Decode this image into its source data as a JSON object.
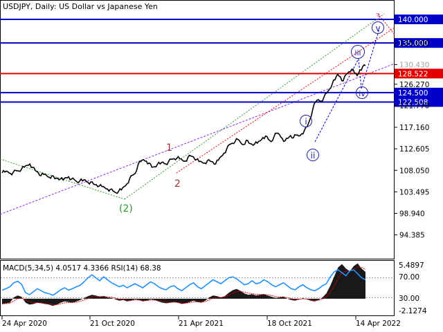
{
  "title": "USDJPY, Daily:  US Dollar vs Japanese Yen",
  "price_axis": {
    "ticks": [
      "135.000",
      "130.430",
      "126.270",
      "121.770",
      "117.160",
      "112.605",
      "108.050",
      "103.495",
      "98.940",
      "94.385"
    ],
    "tick_values": [
      135.0,
      130.43,
      126.27,
      121.77,
      117.16,
      112.605,
      108.05,
      103.495,
      98.94,
      94.385
    ],
    "range": [
      89.5,
      143.8
    ]
  },
  "level_lines": [
    {
      "value": 140.0,
      "label": "140.000",
      "color": "#0000c8"
    },
    {
      "value": 135.0,
      "label": "135.000",
      "color": "#0000c8"
    },
    {
      "value": 128.522,
      "label": "128.522",
      "color": "#e00000"
    },
    {
      "value": 124.5,
      "label": "124.500",
      "color": "#0000c8"
    },
    {
      "value": 122.508,
      "label": "122.508",
      "color": "#0000c8"
    }
  ],
  "price_label_current": "130.430",
  "wave_labels": [
    {
      "text": "1",
      "color": "#a03030"
    },
    {
      "text": "2",
      "color": "#a03030"
    },
    {
      "text": "(2)",
      "color": "#2e9a2e"
    },
    {
      "text": "3",
      "color": "#c070c0"
    },
    {
      "text": "i",
      "color": "#2020a0"
    },
    {
      "text": "ii",
      "color": "#2020a0"
    },
    {
      "text": "iii",
      "color": "#2020a0"
    },
    {
      "text": "iv",
      "color": "#2020a0"
    },
    {
      "text": "v",
      "color": "#2020a0"
    }
  ],
  "indicator": {
    "label": "MACD(5,34,5) 4.0517 4.3366 RSI(14) 68.38",
    "ticks": [
      "5.4897",
      "70.00",
      "30.00",
      "-2.1274"
    ]
  },
  "date_ticks": [
    "24 Apr 2020",
    "21 Oct 2020",
    "21 Apr 2021",
    "18 Oct 2021",
    "14 Apr 2022"
  ],
  "colors": {
    "price": "#000000",
    "blue_level": "#0000c8",
    "red_level": "#e00000",
    "rsi": "#1e90ff",
    "macd": "#000000",
    "signal": "#e00000"
  },
  "chart_data": {
    "type": "line",
    "title": "USDJPY, Daily:  US Dollar vs Japanese Yen",
    "x_start": "2020-04-24",
    "x_end": "2022-04-21",
    "series": [
      {
        "values": [
          [
            0,
            107.5
          ],
          [
            3,
            107.7
          ],
          [
            6,
            107.8
          ],
          [
            9,
            107.4
          ],
          [
            12,
            107.6
          ],
          [
            15,
            108.0
          ],
          [
            18,
            107.9
          ],
          [
            21,
            108.3
          ],
          [
            24,
            108.7
          ],
          [
            27,
            109.1
          ],
          [
            30,
            109.4
          ],
          [
            33,
            108.7
          ],
          [
            36,
            108.0
          ],
          [
            39,
            107.6
          ],
          [
            42,
            106.9
          ],
          [
            45,
            107.2
          ],
          [
            48,
            107.0
          ],
          [
            51,
            106.6
          ],
          [
            54,
            106.9
          ],
          [
            57,
            106.3
          ],
          [
            60,
            106.4
          ],
          [
            63,
            106.2
          ],
          [
            66,
            106.0
          ],
          [
            69,
            106.5
          ],
          [
            72,
            106.7
          ],
          [
            75,
            106.2
          ],
          [
            78,
            106.1
          ],
          [
            81,
            105.6
          ],
          [
            84,
            105.8
          ],
          [
            87,
            105.8
          ],
          [
            90,
            106.0
          ],
          [
            93,
            105.5
          ],
          [
            96,
            105.6
          ],
          [
            99,
            105.1
          ],
          [
            102,
            105.0
          ],
          [
            105,
            104.7
          ],
          [
            108,
            104.6
          ],
          [
            111,
            104.4
          ],
          [
            114,
            104.1
          ],
          [
            117,
            104.0
          ],
          [
            120,
            103.7
          ],
          [
            123,
            103.3
          ],
          [
            126,
            103.6
          ],
          [
            129,
            103.9
          ],
          [
            132,
            104.6
          ],
          [
            135,
            105.2
          ],
          [
            138,
            106.3
          ],
          [
            141,
            107.0
          ],
          [
            144,
            107.4
          ],
          [
            147,
            109.2
          ],
          [
            150,
            109.9
          ],
          [
            153,
            110.3
          ],
          [
            156,
            110.0
          ],
          [
            159,
            109.6
          ],
          [
            162,
            108.7
          ],
          [
            165,
            108.8
          ],
          [
            168,
            109.3
          ],
          [
            171,
            109.4
          ],
          [
            174,
            109.8
          ],
          [
            177,
            109.4
          ],
          [
            180,
            109.9
          ],
          [
            183,
            110.4
          ],
          [
            186,
            110.5
          ],
          [
            189,
            110.6
          ],
          [
            192,
            110.5
          ],
          [
            195,
            110.2
          ],
          [
            198,
            110.0
          ],
          [
            201,
            110.8
          ],
          [
            204,
            111.1
          ],
          [
            207,
            110.9
          ],
          [
            210,
            110.3
          ],
          [
            213,
            109.9
          ],
          [
            216,
            109.8
          ],
          [
            219,
            109.6
          ],
          [
            222,
            110.1
          ],
          [
            225,
            110.0
          ],
          [
            228,
            109.8
          ],
          [
            231,
            109.4
          ],
          [
            234,
            110.2
          ],
          [
            237,
            111.0
          ],
          [
            240,
            111.7
          ],
          [
            243,
            112.6
          ],
          [
            246,
            113.5
          ],
          [
            249,
            113.8
          ],
          [
            252,
            114.1
          ],
          [
            255,
            114.6
          ],
          [
            258,
            113.9
          ],
          [
            261,
            113.5
          ],
          [
            264,
            114.4
          ],
          [
            267,
            113.8
          ],
          [
            270,
            113.6
          ],
          [
            273,
            113.6
          ],
          [
            276,
            113.8
          ],
          [
            279,
            114.3
          ],
          [
            282,
            115.0
          ],
          [
            285,
            115.3
          ],
          [
            288,
            114.6
          ],
          [
            291,
            114.1
          ],
          [
            294,
            115.1
          ],
          [
            297,
            115.9
          ],
          [
            300,
            115.6
          ],
          [
            303,
            114.8
          ],
          [
            306,
            114.3
          ],
          [
            309,
            114.8
          ],
          [
            312,
            115.4
          ],
          [
            315,
            114.9
          ],
          [
            318,
            115.5
          ],
          [
            321,
            115.3
          ],
          [
            324,
            115.8
          ],
          [
            327,
            116.5
          ],
          [
            330,
            117.3
          ],
          [
            333,
            118.8
          ],
          [
            336,
            121.0
          ],
          [
            339,
            122.5
          ],
          [
            342,
            123.0
          ],
          [
            345,
            122.7
          ],
          [
            348,
            123.5
          ],
          [
            351,
            124.4
          ],
          [
            354,
            125.2
          ],
          [
            357,
            126.3
          ],
          [
            360,
            127.2
          ],
          [
            363,
            128.4
          ],
          [
            366,
            127.8
          ],
          [
            369,
            127.0
          ],
          [
            372,
            128.3
          ],
          [
            375,
            128.9
          ],
          [
            378,
            129.4
          ],
          [
            381,
            128.7
          ],
          [
            384,
            128.1
          ],
          [
            387,
            129.3
          ],
          [
            390,
            130.0
          ],
          [
            393,
            130.2
          ]
        ]
      }
    ],
    "indicator_series": [
      {
        "name": "RSI(14)",
        "values": [
          45,
          48,
          52,
          60,
          63,
          57,
          40,
          36,
          42,
          48,
          44,
          40,
          38,
          35,
          40,
          46,
          50,
          45,
          48,
          52,
          55,
          62,
          70,
          76,
          70,
          64,
          72,
          66,
          60,
          56,
          52,
          55,
          50,
          54,
          58,
          54,
          50,
          56,
          62,
          58,
          52,
          48,
          46,
          52,
          54,
          48,
          44,
          50,
          56,
          60,
          52,
          48,
          54,
          60,
          66,
          62,
          58,
          64,
          70,
          72,
          68,
          62,
          56,
          58,
          64,
          58,
          60,
          66,
          62,
          56,
          52,
          56,
          60,
          54,
          48,
          46,
          52,
          56,
          50,
          46,
          44,
          48,
          54,
          58,
          72,
          82,
          86,
          80,
          74,
          84,
          86,
          78,
          70,
          66
        ]
      },
      {
        "name": "MACD",
        "values": [
          -0.8,
          -0.7,
          -0.6,
          0.2,
          0.5,
          0.3,
          -0.6,
          -0.9,
          -0.8,
          -0.6,
          -0.7,
          -0.8,
          -0.9,
          -1.1,
          -0.9,
          -0.6,
          -0.4,
          -0.5,
          -0.6,
          -0.4,
          -0.2,
          0.1,
          0.4,
          0.6,
          0.5,
          0.3,
          0.4,
          0.2,
          0.1,
          -0.1,
          -0.3,
          -0.2,
          -0.4,
          -0.3,
          -0.1,
          -0.2,
          -0.4,
          -0.3,
          -0.1,
          -0.2,
          -0.4,
          -0.6,
          -0.7,
          -0.6,
          -0.5,
          -0.6,
          -0.8,
          -0.7,
          -0.5,
          -0.3,
          -0.5,
          -0.6,
          -0.3,
          0.2,
          0.5,
          0.4,
          0.2,
          0.4,
          0.9,
          1.3,
          1.5,
          1.2,
          0.8,
          0.6,
          0.7,
          0.5,
          0.6,
          0.7,
          0.5,
          0.3,
          0.1,
          0.2,
          0.3,
          0.0,
          -0.2,
          -0.3,
          -0.1,
          0.1,
          -0.1,
          -0.3,
          -0.4,
          -0.2,
          0.2,
          0.8,
          2.0,
          3.4,
          4.8,
          5.3,
          4.6,
          4.2,
          5.0,
          5.4,
          4.6,
          4.1
        ]
      }
    ],
    "ylim": [
      89.5,
      143.8
    ]
  }
}
